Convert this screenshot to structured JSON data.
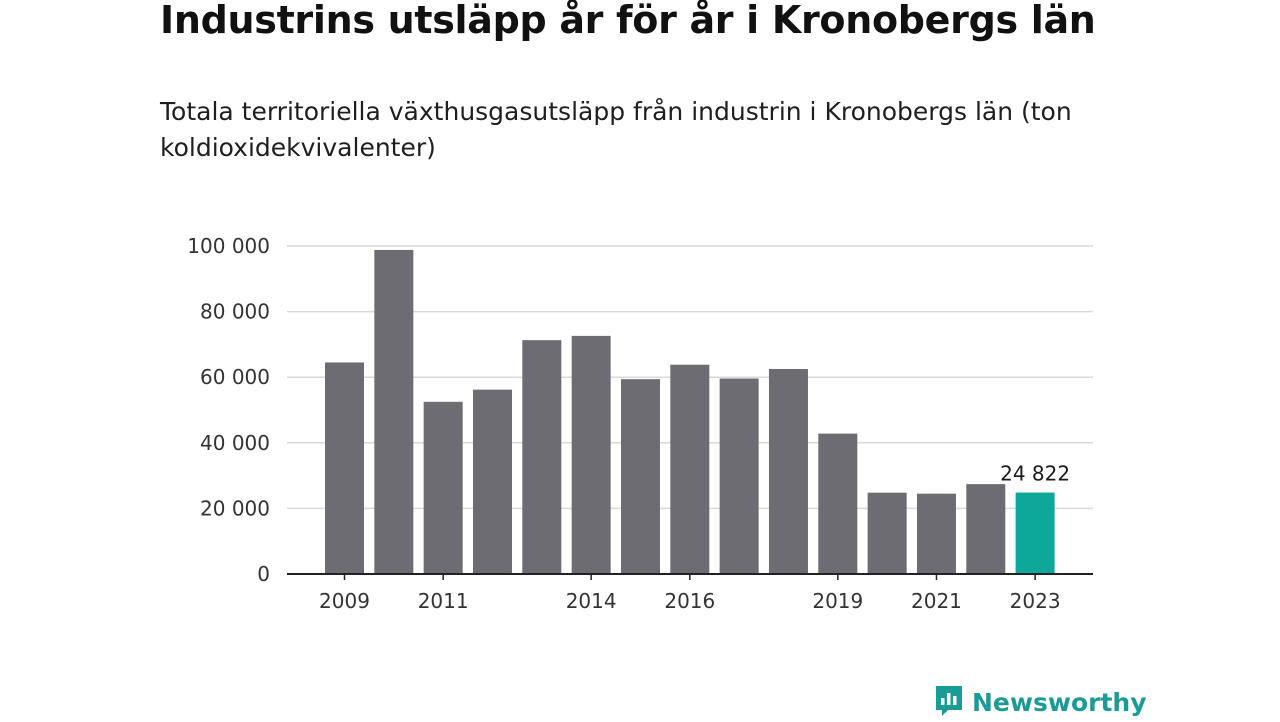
{
  "title": "Industrins utsläpp år för år i Kronobergs län",
  "subtitle": "Totala territoriella växthusgasutsläpp från industrin i Kronobergs län (ton koldioxidekvivalenter)",
  "logo": {
    "text": "Newsworthy",
    "icon": "newsworthy-logo-icon"
  },
  "colors": {
    "bar": "#6d6c73",
    "highlight": "#0ea89a",
    "grid": "#d9d9d9",
    "axis": "#222222",
    "brand": "#1a9c96"
  },
  "chart_data": {
    "type": "bar",
    "categories": [
      "2009",
      "2010",
      "2011",
      "2012",
      "2013",
      "2014",
      "2015",
      "2016",
      "2017",
      "2018",
      "2019",
      "2020",
      "2021",
      "2022",
      "2023"
    ],
    "values": [
      64500,
      98800,
      52500,
      56200,
      71300,
      72600,
      59400,
      63800,
      59600,
      62500,
      42800,
      24800,
      24500,
      27400,
      24822
    ],
    "highlight_index": 14,
    "data_labels": [
      {
        "index": 14,
        "text": "24 822"
      }
    ],
    "x_tick_labels": [
      "2009",
      "2011",
      "2014",
      "2016",
      "2019",
      "2021",
      "2023"
    ],
    "y_ticks": [
      0,
      20000,
      40000,
      60000,
      80000,
      100000
    ],
    "y_tick_labels": [
      "0",
      "20 000",
      "40 000",
      "60 000",
      "80 000",
      "100 000"
    ],
    "ylim": [
      0,
      100000
    ],
    "grid": true,
    "legend": "none",
    "xlabel": "",
    "ylabel": ""
  }
}
